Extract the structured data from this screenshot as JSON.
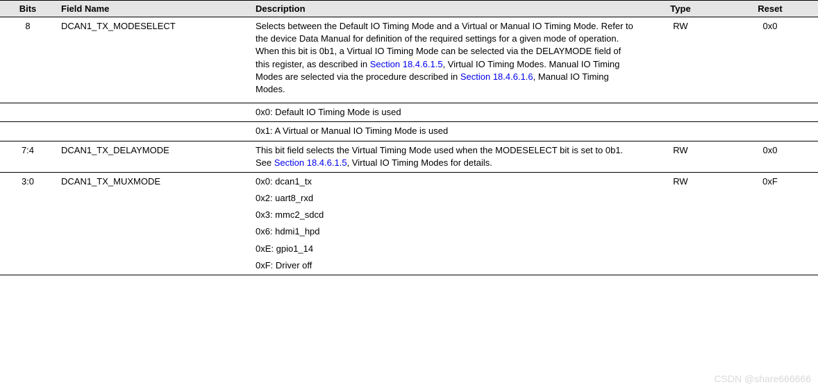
{
  "headers": {
    "bits": "Bits",
    "field": "Field Name",
    "desc": "Description",
    "type": "Type",
    "reset": "Reset"
  },
  "rows": [
    {
      "bits": "8",
      "field": "DCAN1_TX_MODESELECT",
      "type": "RW",
      "reset": "0x0",
      "desc": {
        "p1a": "Selects between the Default IO Timing Mode and a Virtual or Manual IO Timing Mode. Refer to the device Data Manual for definition of the required settings for a given mode of operation. When this bit is 0b1, a Virtual IO Timing Mode can be selected via the DELAYMODE field of this register, as described in ",
        "link1": "Section 18.4.6.1.5",
        "p1b": ", Virtual IO Timing Modes. Manual IO Timing Modes are selected via the procedure described in ",
        "link2": "Section 18.4.6.1.6",
        "p1c": ", Manual IO Timing Modes.",
        "p2": "0x0: Default IO Timing Mode is used",
        "p3": "0x1: A Virtual or Manual IO Timing Mode is used"
      }
    },
    {
      "bits": "7:4",
      "field": "DCAN1_TX_DELAYMODE",
      "type": "RW",
      "reset": "0x0",
      "desc": {
        "p1a": "This bit field selects the Virtual Timing Mode used when the MODESELECT bit is set to 0b1. See ",
        "link1": "Section 18.4.6.1.5",
        "p1b": ", Virtual IO Timing Modes for details."
      }
    },
    {
      "bits": "3:0",
      "field": "DCAN1_TX_MUXMODE",
      "type": "RW",
      "reset": "0xF",
      "desc": {
        "l1": "0x0: dcan1_tx",
        "l2": "0x2: uart8_rxd",
        "l3": "0x3: mmc2_sdcd",
        "l4": "0x6: hdmi1_hpd",
        "l5": "0xE: gpio1_14",
        "l6": "0xF: Driver off"
      }
    }
  ],
  "watermark": "CSDN @share666666"
}
